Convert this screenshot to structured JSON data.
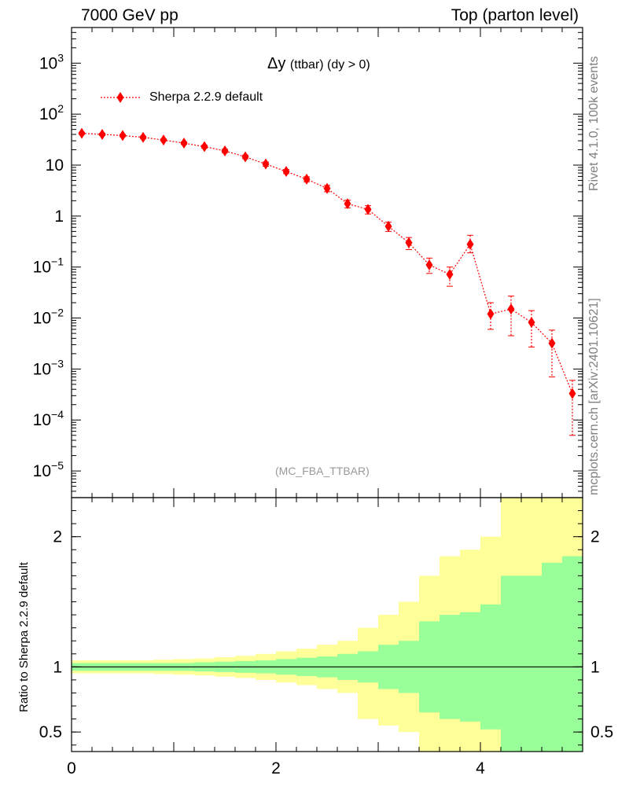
{
  "header": {
    "left": "7000 GeV pp",
    "right": "Top (parton level)"
  },
  "side_labels": {
    "rivet": "Rivet 4.1.0,  100k events",
    "mcplots": "mcplots.cern.ch [arXiv:2401.10621]"
  },
  "watermark": "(MC_FBA_TTBAR)",
  "chart_data": [
    {
      "type": "line",
      "title_main": "Δy",
      "title_sub": "(ttbar) (dy > 0)",
      "xlabel": "",
      "ylabel": "",
      "yscale": "log",
      "xlim": [
        0,
        5
      ],
      "ylim": [
        3e-06,
        5000
      ],
      "y_ticks": [
        {
          "value": 1e-05,
          "base": "10",
          "exp": "−5"
        },
        {
          "value": 0.0001,
          "base": "10",
          "exp": "−4"
        },
        {
          "value": 0.001,
          "base": "10",
          "exp": "−3"
        },
        {
          "value": 0.01,
          "base": "10",
          "exp": "−2"
        },
        {
          "value": 0.1,
          "base": "10",
          "exp": "−1"
        },
        {
          "value": 1,
          "base": "1",
          "exp": ""
        },
        {
          "value": 10,
          "base": "10",
          "exp": ""
        },
        {
          "value": 100,
          "base": "10",
          "exp": "2"
        },
        {
          "value": 1000,
          "base": "10",
          "exp": "3"
        }
      ],
      "legend": "Sherpa 2.2.9 default",
      "color": "#ff0000",
      "series": [
        {
          "name": "Sherpa 2.2.9 default",
          "x": [
            0.1,
            0.3,
            0.5,
            0.7,
            0.9,
            1.1,
            1.3,
            1.5,
            1.7,
            1.9,
            2.1,
            2.3,
            2.5,
            2.7,
            2.9,
            3.1,
            3.3,
            3.5,
            3.7,
            3.9,
            4.1,
            4.3,
            4.5,
            4.7,
            4.9
          ],
          "y": [
            42,
            40,
            38,
            35,
            31,
            27,
            23,
            19,
            14.5,
            10.5,
            7.5,
            5.3,
            3.5,
            1.75,
            1.35,
            0.63,
            0.3,
            0.11,
            0.072,
            0.28,
            0.012,
            0.015,
            0.0082,
            0.0032,
            0.00033
          ],
          "y_low": [
            40,
            38,
            36,
            33,
            29.5,
            25.5,
            21.5,
            17.5,
            13.3,
            9.5,
            6.8,
            4.7,
            3.0,
            1.45,
            1.1,
            0.5,
            0.22,
            0.075,
            0.042,
            0.19,
            0.006,
            0.0045,
            0.0027,
            0.0007,
            5e-05
          ],
          "y_high": [
            44,
            42,
            40,
            37,
            32.5,
            28.5,
            24.5,
            20.5,
            15.7,
            11.5,
            8.2,
            5.9,
            4.0,
            2.05,
            1.6,
            0.76,
            0.38,
            0.15,
            0.1,
            0.42,
            0.02,
            0.027,
            0.014,
            0.0058,
            0.0006
          ]
        }
      ]
    },
    {
      "type": "area",
      "ylabel": "Ratio to Sherpa 2.2.9 default",
      "xlim": [
        0,
        5
      ],
      "ylim": [
        0.35,
        2.3
      ],
      "x_ticks": [
        "0",
        "2",
        "4"
      ],
      "y_ticks": [
        {
          "value": 0.5,
          "label": "0.5"
        },
        {
          "value": 1,
          "label": "1"
        },
        {
          "value": 2,
          "label": "2"
        }
      ],
      "reference_line": 1,
      "bins": [
        0,
        0.2,
        0.4,
        0.6,
        0.8,
        1.0,
        1.2,
        1.4,
        1.6,
        1.8,
        2.0,
        2.2,
        2.4,
        2.6,
        2.8,
        3.0,
        3.2,
        3.4,
        3.6,
        3.8,
        4.0,
        4.2,
        4.4,
        4.6,
        4.8,
        5.0
      ],
      "series": [
        {
          "name": "stat band",
          "color": "#99ff99",
          "upper": [
            1.03,
            1.03,
            1.03,
            1.03,
            1.03,
            1.03,
            1.035,
            1.04,
            1.045,
            1.05,
            1.06,
            1.07,
            1.08,
            1.1,
            1.12,
            1.17,
            1.2,
            1.35,
            1.4,
            1.42,
            1.48,
            1.7,
            1.7,
            1.8,
            1.85
          ],
          "lower": [
            0.97,
            0.97,
            0.97,
            0.97,
            0.97,
            0.97,
            0.965,
            0.96,
            0.955,
            0.95,
            0.94,
            0.93,
            0.92,
            0.9,
            0.88,
            0.83,
            0.8,
            0.65,
            0.6,
            0.58,
            0.52,
            0.3,
            0.3,
            0.2,
            0.15
          ]
        },
        {
          "name": "total band",
          "color": "#ffff99",
          "upper": [
            1.05,
            1.05,
            1.05,
            1.05,
            1.055,
            1.06,
            1.065,
            1.075,
            1.085,
            1.1,
            1.12,
            1.14,
            1.17,
            1.2,
            1.3,
            1.4,
            1.5,
            1.7,
            1.85,
            1.9,
            2.0,
            2.4,
            2.35,
            2.5,
            2.6
          ],
          "lower": [
            0.95,
            0.95,
            0.95,
            0.95,
            0.945,
            0.94,
            0.935,
            0.925,
            0.915,
            0.9,
            0.88,
            0.86,
            0.83,
            0.8,
            0.6,
            0.55,
            0.5,
            0.3,
            0.15,
            0.1,
            0.1,
            0.1,
            0.1,
            0.1,
            0.1
          ]
        }
      ]
    }
  ]
}
